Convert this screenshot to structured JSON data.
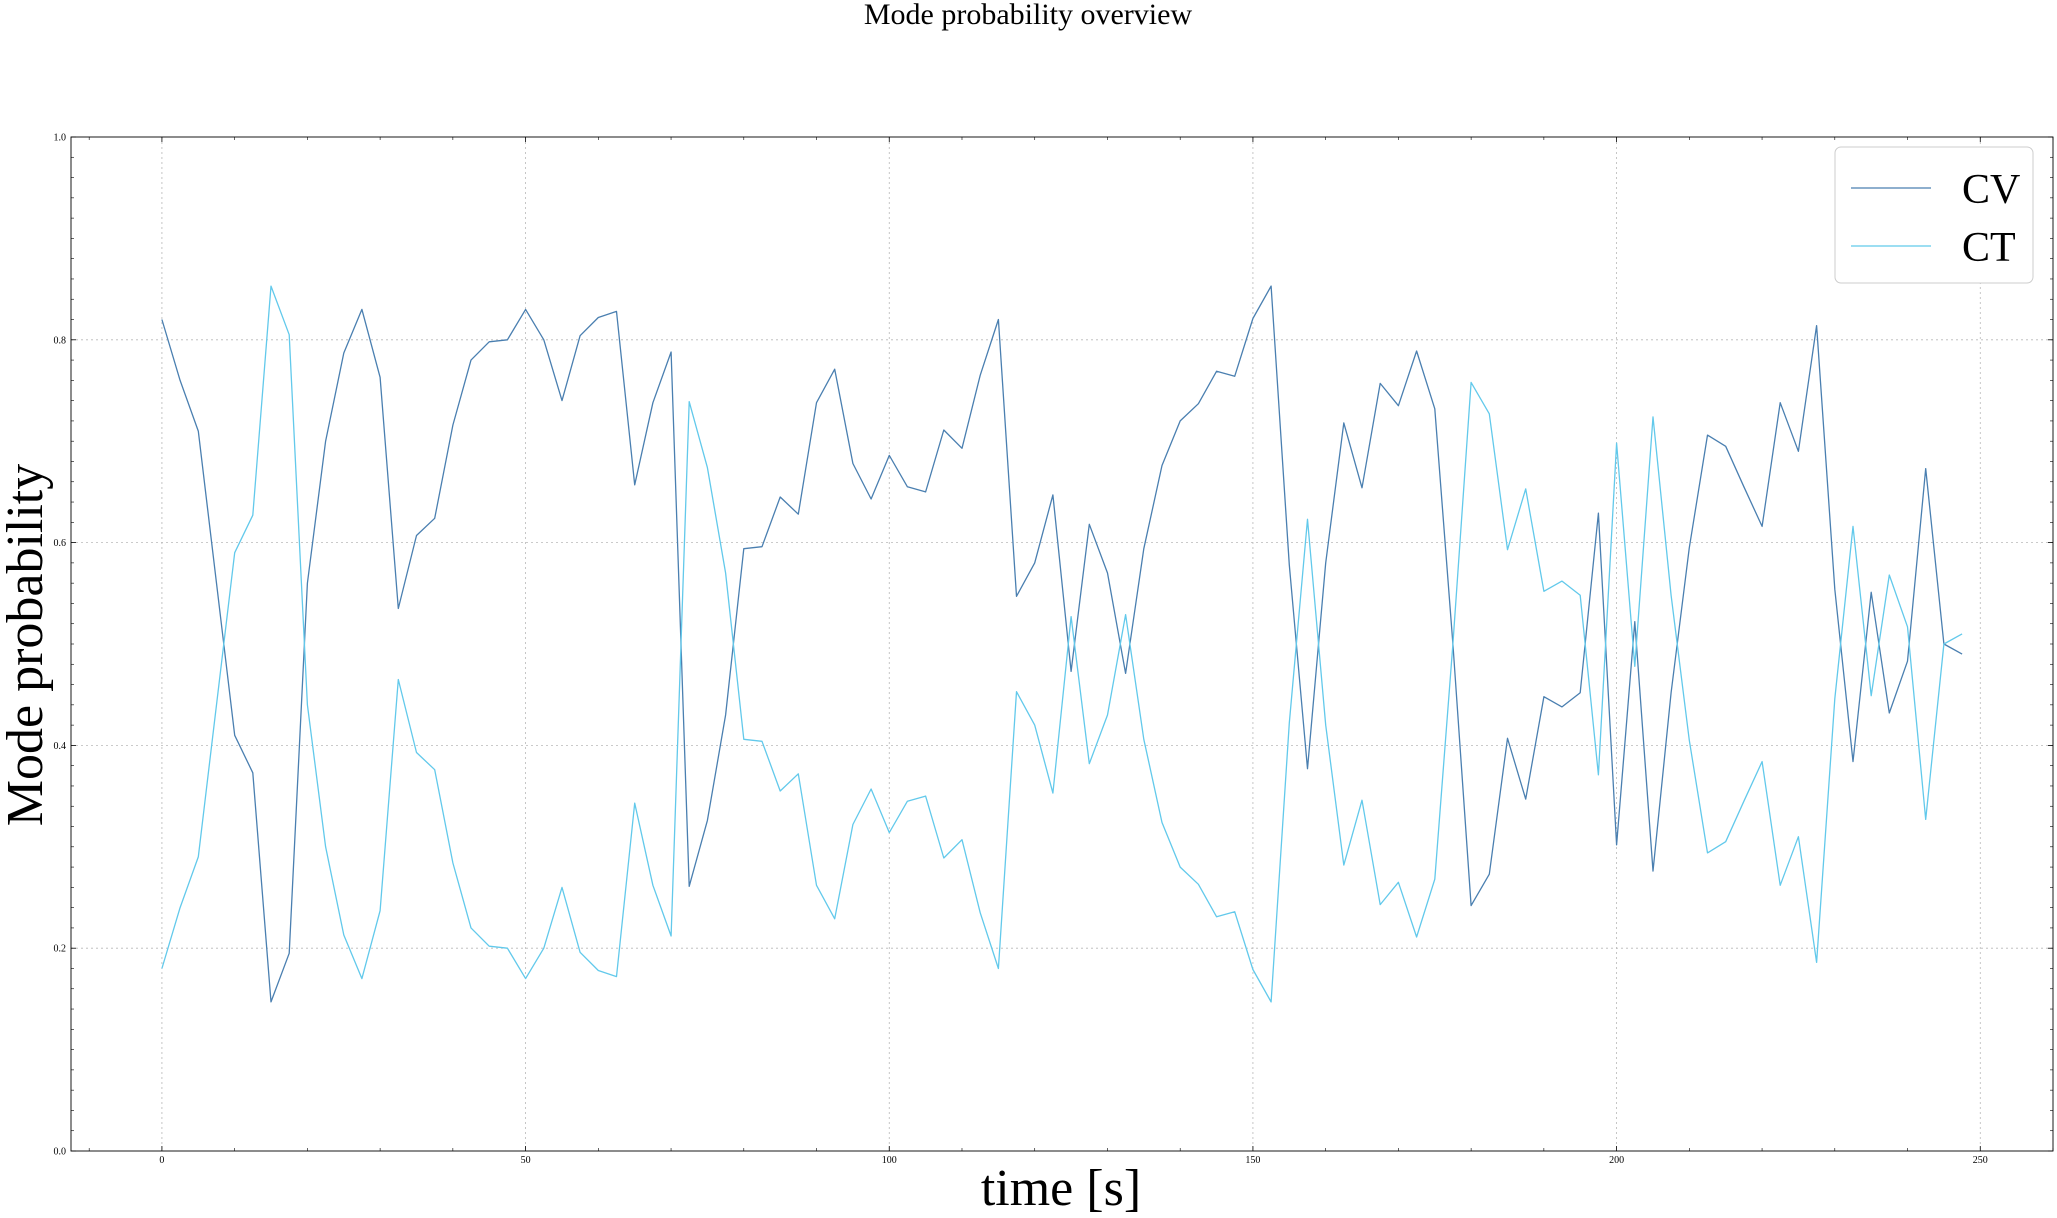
{
  "chart_data": {
    "type": "line",
    "title": "Mode probability overview",
    "xlabel": "time [s]",
    "ylabel": "Mode probability",
    "xlim": [
      -12.5,
      260
    ],
    "ylim": [
      0.0,
      1.0
    ],
    "xticks": [
      0,
      50,
      100,
      150,
      200,
      250
    ],
    "yticks": [
      0.0,
      0.2,
      0.4,
      0.6,
      0.8,
      1.0
    ],
    "xtick_labels": [
      "0",
      "50",
      "100",
      "150",
      "200",
      "250"
    ],
    "ytick_labels": [
      "0.0",
      "0.2",
      "0.4",
      "0.6",
      "0.8",
      "1.0"
    ],
    "grid": true,
    "legend_position": "top-right",
    "x": [
      0,
      2.5,
      5,
      7.5,
      10,
      12.5,
      15,
      17.5,
      20,
      22.5,
      25,
      27.5,
      30,
      32.5,
      35,
      37.5,
      40,
      42.5,
      45,
      47.5,
      50,
      52.5,
      55,
      57.5,
      60,
      62.5,
      65,
      67.5,
      70,
      72.5,
      75,
      77.5,
      80,
      82.5,
      85,
      87.5,
      90,
      92.5,
      95,
      97.5,
      100,
      102.5,
      105,
      107.5,
      110,
      112.5,
      115,
      117.5,
      120,
      122.5,
      125,
      127.5,
      130,
      132.5,
      135,
      137.5,
      140,
      142.5,
      145,
      147.5,
      150,
      152.5,
      155,
      157.5,
      160,
      162.5,
      165,
      167.5,
      170,
      172.5,
      175,
      177.5,
      180,
      182.5,
      185,
      187.5,
      190,
      192.5,
      195,
      197.5,
      200,
      202.5,
      205,
      207.5,
      210,
      212.5,
      215,
      217.5,
      220,
      222.5,
      225,
      227.5,
      230,
      232.5,
      235,
      237.5,
      240,
      242.5,
      245,
      247.5
    ],
    "series": [
      {
        "name": "CV",
        "color": "#4a7fb0",
        "values": [
          0.82,
          0.76,
          0.71,
          0.56,
          0.41,
          0.373,
          0.147,
          0.195,
          0.56,
          0.7,
          0.787,
          0.83,
          0.763,
          0.535,
          0.607,
          0.624,
          0.716,
          0.78,
          0.798,
          0.8,
          0.83,
          0.8,
          0.74,
          0.804,
          0.822,
          0.828,
          0.657,
          0.738,
          0.788,
          0.261,
          0.326,
          0.43,
          0.594,
          0.596,
          0.645,
          0.628,
          0.738,
          0.771,
          0.678,
          0.643,
          0.686,
          0.655,
          0.65,
          0.711,
          0.693,
          0.765,
          0.82,
          0.547,
          0.58,
          0.647,
          0.473,
          0.618,
          0.57,
          0.471,
          0.594,
          0.676,
          0.72,
          0.737,
          0.769,
          0.764,
          0.821,
          0.853,
          0.578,
          0.377,
          0.58,
          0.718,
          0.654,
          0.757,
          0.735,
          0.789,
          0.732,
          0.5,
          0.242,
          0.273,
          0.407,
          0.347,
          0.448,
          0.438,
          0.452,
          0.629,
          0.302,
          0.522,
          0.276,
          0.452,
          0.595,
          0.706,
          0.695,
          0.655,
          0.616,
          0.738,
          0.69,
          0.814,
          0.554,
          0.384,
          0.551,
          0.432,
          0.483,
          0.673,
          0.5,
          0.49
        ]
      },
      {
        "name": "CT",
        "color": "#62c9eb",
        "values": [
          0.18,
          0.24,
          0.29,
          0.44,
          0.59,
          0.627,
          0.853,
          0.805,
          0.44,
          0.3,
          0.213,
          0.17,
          0.237,
          0.465,
          0.393,
          0.376,
          0.284,
          0.22,
          0.202,
          0.2,
          0.17,
          0.2,
          0.26,
          0.196,
          0.178,
          0.172,
          0.343,
          0.262,
          0.212,
          0.739,
          0.674,
          0.57,
          0.406,
          0.404,
          0.355,
          0.372,
          0.262,
          0.229,
          0.322,
          0.357,
          0.314,
          0.345,
          0.35,
          0.289,
          0.307,
          0.235,
          0.18,
          0.453,
          0.42,
          0.353,
          0.527,
          0.382,
          0.43,
          0.529,
          0.406,
          0.324,
          0.28,
          0.263,
          0.231,
          0.236,
          0.179,
          0.147,
          0.422,
          0.623,
          0.42,
          0.282,
          0.346,
          0.243,
          0.265,
          0.211,
          0.268,
          0.5,
          0.758,
          0.727,
          0.593,
          0.653,
          0.552,
          0.562,
          0.548,
          0.371,
          0.698,
          0.478,
          0.724,
          0.548,
          0.405,
          0.294,
          0.305,
          0.345,
          0.384,
          0.262,
          0.31,
          0.186,
          0.446,
          0.616,
          0.449,
          0.568,
          0.517,
          0.327,
          0.5,
          0.51
        ]
      }
    ]
  }
}
